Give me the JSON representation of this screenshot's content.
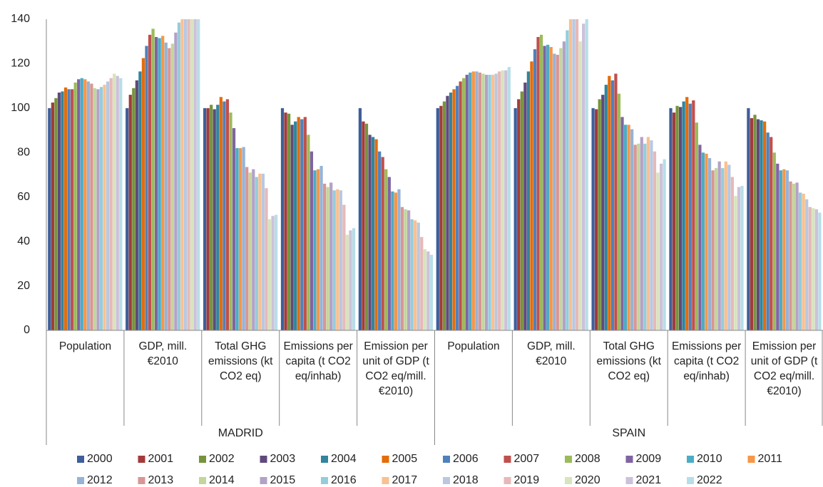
{
  "chart_data": {
    "type": "bar",
    "groups": [
      "MADRID",
      "SPAIN"
    ],
    "categories": [
      "Population",
      "GDP, mill. €2010",
      "Total GHG emissions (kt CO2 eq)",
      "Emissions per capita (t CO2 eq/inhab)",
      "Emission per unit of GDP (t CO2 eq/mill. €2010)",
      "Population",
      "GDP, mill. €2010",
      "Total GHG emissions (kt CO2 eq)",
      "Emissions per capita (t CO2 eq/inhab)",
      "Emission per unit of GDP (t CO2 eq/mill. €2010)"
    ],
    "ylim": [
      0,
      140
    ],
    "yticks": [
      0,
      20,
      40,
      60,
      80,
      100,
      120,
      140
    ],
    "grid": false,
    "series": [
      {
        "name": "2000",
        "color": "#3E5F9A",
        "values": [
          100,
          100,
          100,
          100,
          100,
          100,
          100,
          100,
          100,
          100
        ]
      },
      {
        "name": "2001",
        "color": "#A23B3A",
        "values": [
          102.5,
          106,
          100,
          98,
          94,
          101,
          104,
          99.5,
          98,
          95.5
        ]
      },
      {
        "name": "2002",
        "color": "#77933C",
        "values": [
          104.5,
          109,
          101.5,
          97.5,
          93,
          103,
          107.5,
          104,
          101,
          97
        ]
      },
      {
        "name": "2003",
        "color": "#604A7B",
        "values": [
          107,
          112.5,
          99.5,
          92.5,
          88,
          105.5,
          111.5,
          106,
          100.5,
          95
        ]
      },
      {
        "name": "2004",
        "color": "#31859C",
        "values": [
          107.5,
          116.5,
          101.5,
          94,
          87,
          107,
          116.5,
          110.5,
          103,
          94.5
        ]
      },
      {
        "name": "2005",
        "color": "#E46C0A",
        "values": [
          109.3,
          122.5,
          105,
          96,
          86,
          108.5,
          121,
          114.5,
          105,
          94
        ]
      },
      {
        "name": "2006",
        "color": "#4F81BD",
        "values": [
          108.5,
          128,
          103,
          95,
          80.5,
          110,
          126.5,
          112.5,
          102,
          89
        ]
      },
      {
        "name": "2007",
        "color": "#C0504D",
        "values": [
          108.5,
          133,
          104,
          96,
          78,
          112,
          132,
          115.5,
          103.5,
          87
        ]
      },
      {
        "name": "2008",
        "color": "#9BBB59",
        "values": [
          111.5,
          135.7,
          98,
          88,
          72.5,
          113.5,
          133,
          106.5,
          93.5,
          80
        ]
      },
      {
        "name": "2009",
        "color": "#8064A2",
        "values": [
          113,
          132,
          91,
          80.5,
          69,
          115,
          128,
          96,
          83.5,
          75
        ]
      },
      {
        "name": "2010",
        "color": "#4BACC6",
        "values": [
          113.5,
          131.5,
          82,
          72,
          62.5,
          116,
          128.5,
          92.5,
          80,
          72
        ]
      },
      {
        "name": "2011",
        "color": "#F79646",
        "values": [
          113,
          132.5,
          82,
          72.5,
          62,
          116.5,
          127.5,
          92.5,
          79.5,
          72.5
        ]
      },
      {
        "name": "2012",
        "color": "#95B3D7",
        "values": [
          112,
          129.5,
          82.5,
          74,
          63.5,
          116.5,
          124.5,
          90.5,
          77.5,
          72
        ]
      },
      {
        "name": "2013",
        "color": "#D99694",
        "values": [
          111,
          127,
          73.5,
          66,
          55.5,
          116,
          124,
          83.5,
          72,
          67
        ]
      },
      {
        "name": "2014",
        "color": "#C3D69B",
        "values": [
          109,
          129,
          71,
          64.5,
          54.5,
          115.5,
          127,
          84,
          73,
          66
        ]
      },
      {
        "name": "2015",
        "color": "#B3A2C7",
        "values": [
          108.5,
          134,
          72.5,
          66.5,
          54,
          115,
          130,
          87,
          76,
          66.5
        ]
      },
      {
        "name": "2016",
        "color": "#93CDDD",
        "values": [
          109.5,
          138.5,
          69,
          63,
          50,
          115,
          135,
          84,
          73,
          62
        ]
      },
      {
        "name": "2017",
        "color": "#FAC090",
        "values": [
          110.5,
          141.5,
          70.5,
          63.5,
          49.5,
          115,
          141,
          87,
          76,
          61.5
        ]
      },
      {
        "name": "2018",
        "color": "#B9C8E0",
        "values": [
          112,
          145,
          70.5,
          63,
          48.5,
          115.5,
          145,
          85.5,
          74.5,
          59
        ]
      },
      {
        "name": "2019",
        "color": "#E6B9B8",
        "values": [
          113.5,
          148,
          64,
          56.5,
          42,
          116.5,
          150,
          80.5,
          69,
          55.5
        ]
      },
      {
        "name": "2020",
        "color": "#D7E4BD",
        "values": [
          115.5,
          141,
          50,
          43,
          36.5,
          117,
          130,
          71,
          60.5,
          55
        ]
      },
      {
        "name": "2021",
        "color": "#CCC1DA",
        "values": [
          114.5,
          144,
          51.5,
          45,
          35.5,
          117,
          138,
          75,
          64.5,
          54.5
        ]
      },
      {
        "name": "2022",
        "color": "#B7DEE8",
        "values": [
          113.5,
          150,
          52,
          46,
          34,
          118.5,
          145,
          77,
          65,
          53
        ]
      }
    ]
  }
}
